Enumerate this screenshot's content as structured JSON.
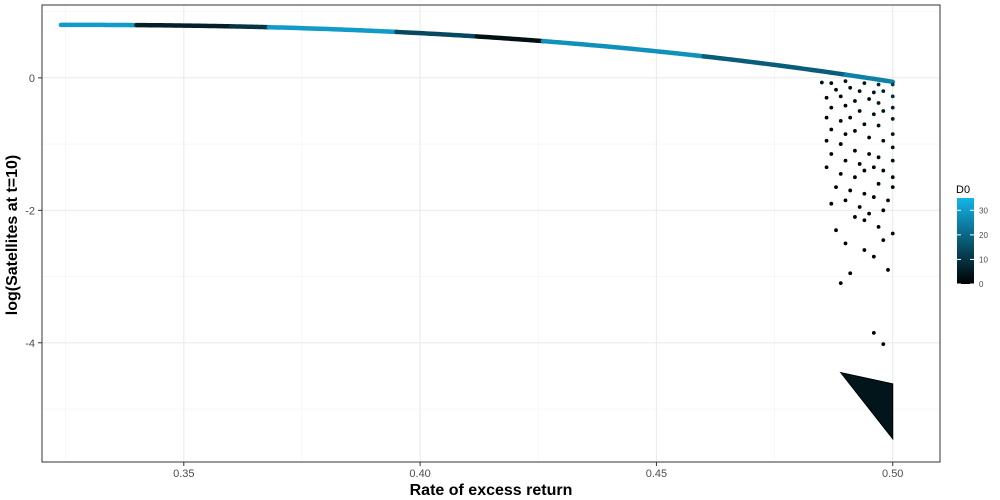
{
  "chart_data": {
    "type": "scatter",
    "title": "",
    "xlabel": "Rate of excess return",
    "ylabel": "log(Satellites at t=10)",
    "xlim": [
      0.32,
      0.51
    ],
    "ylim": [
      -5.8,
      1.1
    ],
    "xticks": [
      0.35,
      0.4,
      0.45,
      0.5
    ],
    "xtick_labels": [
      "0.35",
      "0.40",
      "0.45",
      "0.50"
    ],
    "yticks": [
      0,
      -2,
      -4
    ],
    "ytick_labels": [
      "0",
      "-2",
      "-4"
    ],
    "grid": true,
    "color_scale": {
      "name": "D0",
      "min": 0,
      "max": 35,
      "low_color": "#000000",
      "high_color": "#13b5ea",
      "ticks": [
        0,
        10,
        20,
        30
      ],
      "tick_labels": [
        "0",
        "10",
        "20",
        "30"
      ],
      "legend_placement": "right"
    },
    "curve_segments": [
      {
        "x0": 0.324,
        "x1": 0.34,
        "d0": 30
      },
      {
        "x0": 0.34,
        "x1": 0.36,
        "d0": 6
      },
      {
        "x0": 0.36,
        "x1": 0.368,
        "d0": 10
      },
      {
        "x0": 0.368,
        "x1": 0.395,
        "d0": 30
      },
      {
        "x0": 0.395,
        "x1": 0.412,
        "d0": 14
      },
      {
        "x0": 0.412,
        "x1": 0.426,
        "d0": 3
      },
      {
        "x0": 0.426,
        "x1": 0.46,
        "d0": 28
      },
      {
        "x0": 0.46,
        "x1": 0.49,
        "d0": 18
      },
      {
        "x0": 0.49,
        "x1": 0.5,
        "d0": 25
      }
    ],
    "points": [
      {
        "x": 0.485,
        "y": -0.07,
        "d0": 3
      },
      {
        "x": 0.487,
        "y": -0.08,
        "d0": 2
      },
      {
        "x": 0.49,
        "y": -0.05,
        "d0": 4
      },
      {
        "x": 0.494,
        "y": -0.08,
        "d0": 5
      },
      {
        "x": 0.497,
        "y": -0.1,
        "d0": 8
      },
      {
        "x": 0.5,
        "y": -0.1,
        "d0": 12
      },
      {
        "x": 0.488,
        "y": -0.18,
        "d0": 1
      },
      {
        "x": 0.491,
        "y": -0.15,
        "d0": 2
      },
      {
        "x": 0.493,
        "y": -0.2,
        "d0": 3
      },
      {
        "x": 0.496,
        "y": -0.22,
        "d0": 4
      },
      {
        "x": 0.498,
        "y": -0.2,
        "d0": 6
      },
      {
        "x": 0.5,
        "y": -0.28,
        "d0": 9
      },
      {
        "x": 0.486,
        "y": -0.3,
        "d0": 0
      },
      {
        "x": 0.489,
        "y": -0.28,
        "d0": 1
      },
      {
        "x": 0.492,
        "y": -0.35,
        "d0": 2
      },
      {
        "x": 0.495,
        "y": -0.32,
        "d0": 3
      },
      {
        "x": 0.497,
        "y": -0.38,
        "d0": 5
      },
      {
        "x": 0.5,
        "y": -0.45,
        "d0": 7
      },
      {
        "x": 0.487,
        "y": -0.45,
        "d0": 0
      },
      {
        "x": 0.49,
        "y": -0.42,
        "d0": 1
      },
      {
        "x": 0.493,
        "y": -0.5,
        "d0": 2
      },
      {
        "x": 0.496,
        "y": -0.55,
        "d0": 3
      },
      {
        "x": 0.498,
        "y": -0.5,
        "d0": 4
      },
      {
        "x": 0.5,
        "y": -0.62,
        "d0": 6
      },
      {
        "x": 0.486,
        "y": -0.6,
        "d0": 0
      },
      {
        "x": 0.489,
        "y": -0.65,
        "d0": 1
      },
      {
        "x": 0.491,
        "y": -0.6,
        "d0": 1
      },
      {
        "x": 0.494,
        "y": -0.7,
        "d0": 2
      },
      {
        "x": 0.497,
        "y": -0.72,
        "d0": 3
      },
      {
        "x": 0.5,
        "y": -0.85,
        "d0": 5
      },
      {
        "x": 0.487,
        "y": -0.78,
        "d0": 0
      },
      {
        "x": 0.49,
        "y": -0.85,
        "d0": 1
      },
      {
        "x": 0.492,
        "y": -0.8,
        "d0": 1
      },
      {
        "x": 0.495,
        "y": -0.9,
        "d0": 2
      },
      {
        "x": 0.498,
        "y": -0.95,
        "d0": 3
      },
      {
        "x": 0.5,
        "y": -1.05,
        "d0": 4
      },
      {
        "x": 0.486,
        "y": -0.95,
        "d0": 0
      },
      {
        "x": 0.489,
        "y": -1.0,
        "d0": 0
      },
      {
        "x": 0.492,
        "y": -1.1,
        "d0": 1
      },
      {
        "x": 0.495,
        "y": -1.15,
        "d0": 2
      },
      {
        "x": 0.497,
        "y": -1.2,
        "d0": 2
      },
      {
        "x": 0.5,
        "y": -1.25,
        "d0": 3
      },
      {
        "x": 0.487,
        "y": -1.15,
        "d0": 0
      },
      {
        "x": 0.49,
        "y": -1.25,
        "d0": 0
      },
      {
        "x": 0.493,
        "y": -1.3,
        "d0": 1
      },
      {
        "x": 0.496,
        "y": -1.35,
        "d0": 1
      },
      {
        "x": 0.498,
        "y": -1.4,
        "d0": 2
      },
      {
        "x": 0.5,
        "y": -1.5,
        "d0": 3
      },
      {
        "x": 0.486,
        "y": -1.35,
        "d0": 0
      },
      {
        "x": 0.489,
        "y": -1.45,
        "d0": 0
      },
      {
        "x": 0.492,
        "y": -1.5,
        "d0": 0
      },
      {
        "x": 0.494,
        "y": -1.4,
        "d0": 1
      },
      {
        "x": 0.497,
        "y": -1.6,
        "d0": 1
      },
      {
        "x": 0.5,
        "y": -1.65,
        "d0": 2
      },
      {
        "x": 0.488,
        "y": -1.65,
        "d0": 0
      },
      {
        "x": 0.491,
        "y": -1.7,
        "d0": 0
      },
      {
        "x": 0.494,
        "y": -1.75,
        "d0": 0
      },
      {
        "x": 0.496,
        "y": -1.8,
        "d0": 1
      },
      {
        "x": 0.499,
        "y": -1.85,
        "d0": 1
      },
      {
        "x": 0.487,
        "y": -1.9,
        "d0": 0
      },
      {
        "x": 0.49,
        "y": -1.85,
        "d0": 0
      },
      {
        "x": 0.493,
        "y": -1.95,
        "d0": 0
      },
      {
        "x": 0.495,
        "y": -2.05,
        "d0": 0
      },
      {
        "x": 0.498,
        "y": -2.0,
        "d0": 1
      },
      {
        "x": 0.494,
        "y": -2.15,
        "d0": 0
      },
      {
        "x": 0.492,
        "y": -2.1,
        "d0": 0
      },
      {
        "x": 0.488,
        "y": -2.3,
        "d0": 0
      },
      {
        "x": 0.497,
        "y": -2.25,
        "d0": 0
      },
      {
        "x": 0.5,
        "y": -2.35,
        "d0": 1
      },
      {
        "x": 0.49,
        "y": -2.5,
        "d0": 0
      },
      {
        "x": 0.498,
        "y": -2.45,
        "d0": 0
      },
      {
        "x": 0.494,
        "y": -2.6,
        "d0": 0
      },
      {
        "x": 0.496,
        "y": -2.7,
        "d0": 0
      },
      {
        "x": 0.491,
        "y": -2.95,
        "d0": 0
      },
      {
        "x": 0.499,
        "y": -2.9,
        "d0": 0
      },
      {
        "x": 0.489,
        "y": -3.1,
        "d0": 0
      },
      {
        "x": 0.496,
        "y": -3.85,
        "d0": 0
      },
      {
        "x": 0.498,
        "y": -4.02,
        "d0": 0
      }
    ],
    "triangle": {
      "apex": {
        "x": 0.489,
        "y": -4.45
      },
      "top_right": {
        "x": 0.5,
        "y": -4.62
      },
      "bottom_right": {
        "x": 0.5,
        "y": -5.45
      },
      "d0": 4
    }
  }
}
